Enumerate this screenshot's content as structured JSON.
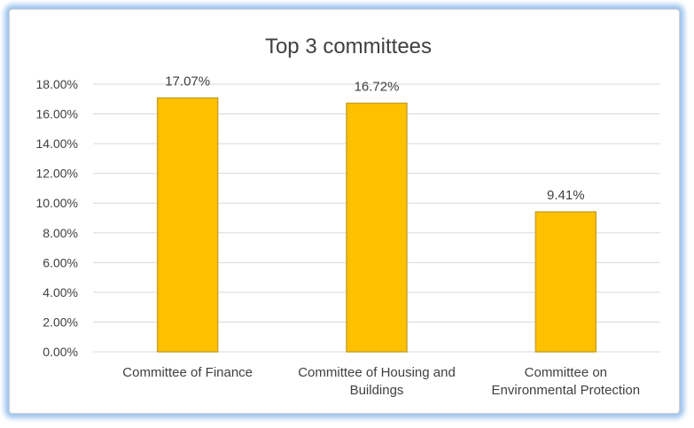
{
  "chart_data": {
    "type": "bar",
    "title": "Top 3 committees",
    "categories": [
      [
        "Committee of Finance"
      ],
      [
        "Committee of Housing and",
        "Buildings"
      ],
      [
        "Committee on",
        "Environmental Protection"
      ]
    ],
    "values": [
      17.07,
      16.72,
      9.41
    ],
    "data_labels": [
      "17.07%",
      "16.72%",
      "9.41%"
    ],
    "ylim": [
      0,
      18
    ],
    "yticks": [
      0,
      2,
      4,
      6,
      8,
      10,
      12,
      14,
      16,
      18
    ],
    "ytick_labels": [
      "0.00%",
      "2.00%",
      "4.00%",
      "6.00%",
      "8.00%",
      "10.00%",
      "12.00%",
      "14.00%",
      "16.00%",
      "18.00%"
    ],
    "grid": true,
    "legend": "none",
    "colors": {
      "bar_fill": "#FFC000",
      "bar_stroke": "#C9A227",
      "grid": "#d9d9d9",
      "text": "#404040"
    }
  }
}
